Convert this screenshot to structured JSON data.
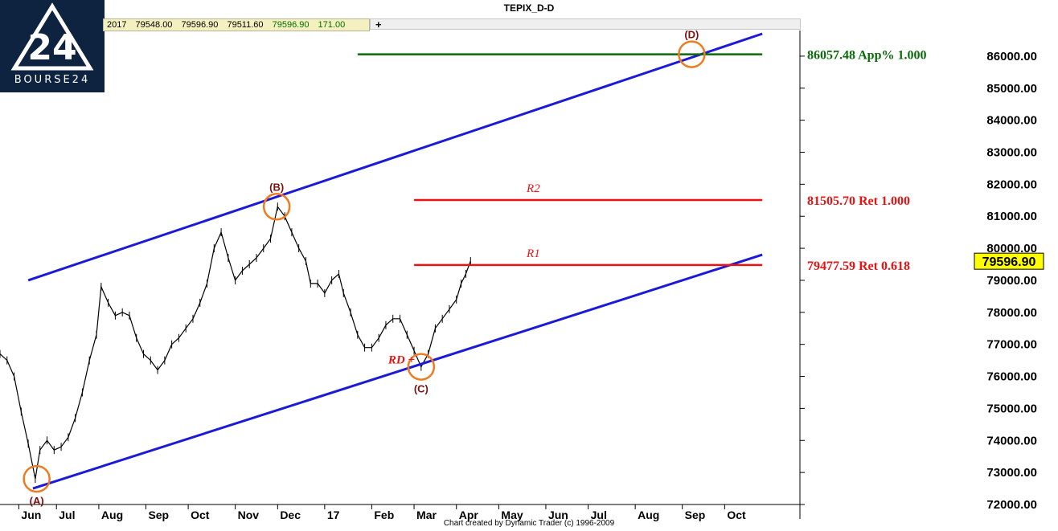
{
  "window": {
    "title": "TEPIX_D-D"
  },
  "logo": {
    "text": "BOURSE24"
  },
  "quote_bar": {
    "date_fragment": "2017",
    "open": "79548.00",
    "high": "79596.90",
    "low": "79511.60",
    "close": "79596.90",
    "change": "171.00",
    "add_label": "+"
  },
  "footer": {
    "credit": "Chart created by Dynamic Trader  (c) 1996-2009"
  },
  "colors": {
    "channel": "#1a1ad8",
    "retracement": "#ee1111",
    "projection": "#0a6b0a",
    "marker": "#f07a1e",
    "wave_label": "#7a1010",
    "price_tag_bg": "#ffff00"
  },
  "chart_data": {
    "type": "line",
    "title": "TEPIX_D-D",
    "y_range": [
      72000,
      86800
    ],
    "y_ticks": [
      "72000.00",
      "73000.00",
      "74000.00",
      "75000.00",
      "76000.00",
      "77000.00",
      "78000.00",
      "79000.00",
      "80000.00",
      "81000.00",
      "82000.00",
      "83000.00",
      "84000.00",
      "85000.00",
      "86000.00"
    ],
    "x_range": [
      0,
      17
    ],
    "x_ticks": [
      {
        "label": "Jun",
        "x": 0.4
      },
      {
        "label": "Jul",
        "x": 1.2
      },
      {
        "label": "Aug",
        "x": 2.1
      },
      {
        "label": "Sep",
        "x": 3.1
      },
      {
        "label": "Oct",
        "x": 4.0
      },
      {
        "label": "Nov",
        "x": 5.0
      },
      {
        "label": "Dec",
        "x": 5.9
      },
      {
        "label": "17",
        "x": 6.9
      },
      {
        "label": "Feb",
        "x": 7.9
      },
      {
        "label": "Mar",
        "x": 8.8
      },
      {
        "label": "Apr",
        "x": 9.7
      },
      {
        "label": "May",
        "x": 10.6
      },
      {
        "label": "Jun",
        "x": 11.6
      },
      {
        "label": "Jul",
        "x": 12.5
      },
      {
        "label": "Aug",
        "x": 13.5
      },
      {
        "label": "Sep",
        "x": 14.5
      },
      {
        "label": "Oct",
        "x": 15.4
      }
    ],
    "series": [
      {
        "values": [
          [
            0.0,
            76700
          ],
          [
            0.15,
            76500
          ],
          [
            0.3,
            76000
          ],
          [
            0.45,
            74900
          ],
          [
            0.6,
            73900
          ],
          [
            0.75,
            72800
          ],
          [
            0.85,
            73700
          ],
          [
            1.0,
            74000
          ],
          [
            1.15,
            73700
          ],
          [
            1.3,
            73800
          ],
          [
            1.45,
            74100
          ],
          [
            1.6,
            74700
          ],
          [
            1.75,
            75500
          ],
          [
            1.9,
            76500
          ],
          [
            2.05,
            77300
          ],
          [
            2.15,
            78800
          ],
          [
            2.3,
            78300
          ],
          [
            2.45,
            77900
          ],
          [
            2.6,
            78000
          ],
          [
            2.75,
            77900
          ],
          [
            2.9,
            77200
          ],
          [
            3.05,
            76700
          ],
          [
            3.2,
            76500
          ],
          [
            3.35,
            76200
          ],
          [
            3.5,
            76500
          ],
          [
            3.65,
            77000
          ],
          [
            3.8,
            77200
          ],
          [
            3.95,
            77500
          ],
          [
            4.1,
            77800
          ],
          [
            4.25,
            78300
          ],
          [
            4.4,
            78900
          ],
          [
            4.55,
            80000
          ],
          [
            4.7,
            80500
          ],
          [
            4.85,
            79700
          ],
          [
            5.0,
            79000
          ],
          [
            5.15,
            79300
          ],
          [
            5.3,
            79500
          ],
          [
            5.45,
            79700
          ],
          [
            5.6,
            80000
          ],
          [
            5.75,
            80300
          ],
          [
            5.9,
            81300
          ],
          [
            6.05,
            81000
          ],
          [
            6.2,
            80500
          ],
          [
            6.35,
            80000
          ],
          [
            6.5,
            79600
          ],
          [
            6.6,
            78900
          ],
          [
            6.75,
            78900
          ],
          [
            6.9,
            78600
          ],
          [
            7.05,
            79000
          ],
          [
            7.2,
            79200
          ],
          [
            7.3,
            78600
          ],
          [
            7.45,
            78000
          ],
          [
            7.6,
            77300
          ],
          [
            7.75,
            76900
          ],
          [
            7.9,
            76900
          ],
          [
            8.05,
            77200
          ],
          [
            8.2,
            77600
          ],
          [
            8.35,
            77800
          ],
          [
            8.5,
            77800
          ],
          [
            8.65,
            77300
          ],
          [
            8.8,
            76800
          ],
          [
            8.95,
            76300
          ],
          [
            9.1,
            76700
          ],
          [
            9.25,
            77500
          ],
          [
            9.4,
            77800
          ],
          [
            9.55,
            78100
          ],
          [
            9.7,
            78400
          ],
          [
            9.8,
            78900
          ],
          [
            9.9,
            79200
          ],
          [
            10.0,
            79600
          ]
        ]
      }
    ],
    "channel_lines": [
      {
        "name": "upper",
        "points": [
          [
            0.6,
            79000
          ],
          [
            16.2,
            86700
          ]
        ]
      },
      {
        "name": "lower",
        "points": [
          [
            0.7,
            72500
          ],
          [
            16.2,
            79800
          ]
        ]
      }
    ],
    "horizontal_levels": [
      {
        "label": "86057.48 App% 1.000",
        "value": 86057.48,
        "x_start": 7.6,
        "x_end": 16.2,
        "role": "projection"
      },
      {
        "label": "81505.70 Ret 1.000",
        "value": 81505.7,
        "x_start": 8.8,
        "x_end": 16.2,
        "role": "retracement",
        "tag": "R2"
      },
      {
        "label": "79477.59 Ret 0.618",
        "value": 79477.59,
        "x_start": 8.8,
        "x_end": 16.2,
        "role": "retracement",
        "tag": "R1"
      }
    ],
    "wave_points": [
      {
        "label": "(A)",
        "x": 0.78,
        "y": 72800,
        "label_pos": "below"
      },
      {
        "label": "(B)",
        "x": 5.88,
        "y": 81300,
        "label_pos": "above"
      },
      {
        "label": "(C)",
        "x": 8.95,
        "y": 76300,
        "label_pos": "below"
      },
      {
        "label": "(D)",
        "x": 14.7,
        "y": 86057.48,
        "label_pos": "above"
      }
    ],
    "annotations": [
      {
        "text": "RD +",
        "x": 8.25,
        "y": 76400
      }
    ],
    "last_price": "79596.90",
    "grid": false
  }
}
